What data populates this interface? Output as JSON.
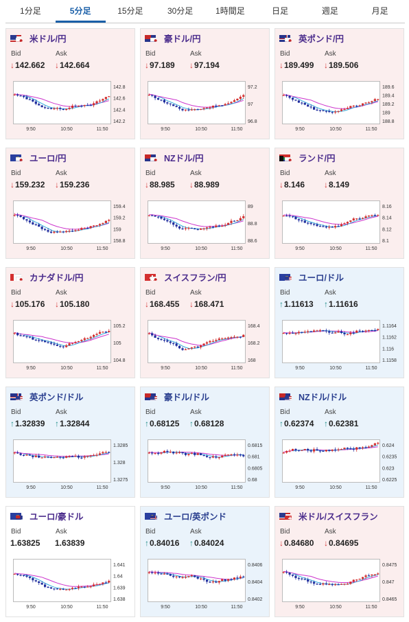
{
  "tabs": [
    {
      "label": "1分足",
      "active": false
    },
    {
      "label": "5分足",
      "active": true
    },
    {
      "label": "15分足",
      "active": false
    },
    {
      "label": "30分足",
      "active": false
    },
    {
      "label": "1時間足",
      "active": false
    },
    {
      "label": "日足",
      "active": false
    },
    {
      "label": "週足",
      "active": false
    },
    {
      "label": "月足",
      "active": false
    }
  ],
  "labels": {
    "bid": "Bid",
    "ask": "Ask"
  },
  "x_ticks": [
    "9:50",
    "10:50",
    "11:50"
  ],
  "colors": {
    "up": "#d32f2f",
    "down": "#1f2d9e",
    "ma_short": "#33aadd",
    "ma_long": "#cc33cc",
    "down_arrow": "#d53737",
    "up_arrow": "#1f8c88"
  },
  "cards": [
    {
      "name": "usd-jpy",
      "title": "米ドル/円",
      "flag": "us-jp",
      "bg": "pink",
      "bid": "142.662",
      "ask": "142.664",
      "trend": "down",
      "y_ticks": [
        "142.8",
        "142.6",
        "142.4",
        "142.2"
      ]
    },
    {
      "name": "aud-jpy",
      "title": "豪ドル/円",
      "flag": "au-jp",
      "bg": "pink",
      "bid": "97.189",
      "ask": "97.194",
      "trend": "down",
      "y_ticks": [
        "97.2",
        "97",
        "96.8"
      ]
    },
    {
      "name": "gbp-jpy",
      "title": "英ポンド/円",
      "flag": "gb-jp",
      "bg": "pink",
      "bid": "189.499",
      "ask": "189.506",
      "trend": "down",
      "y_ticks": [
        "189.6",
        "189.4",
        "189.2",
        "189",
        "188.8"
      ]
    },
    {
      "name": "eur-jpy",
      "title": "ユーロ/円",
      "flag": "eu-jp",
      "bg": "pink",
      "bid": "159.232",
      "ask": "159.236",
      "trend": "down",
      "y_ticks": [
        "159.4",
        "159.2",
        "159",
        "158.8"
      ]
    },
    {
      "name": "nzd-jpy",
      "title": "NZドル/円",
      "flag": "nz-jp",
      "bg": "pink",
      "bid": "88.985",
      "ask": "88.989",
      "trend": "down",
      "y_ticks": [
        "89",
        "88.8",
        "88.6"
      ]
    },
    {
      "name": "zar-jpy",
      "title": "ランド/円",
      "flag": "za-jp",
      "bg": "pink",
      "bid": "8.146",
      "ask": "8.149",
      "trend": "down",
      "y_ticks": [
        "8.16",
        "8.14",
        "8.12",
        "8.1"
      ]
    },
    {
      "name": "cad-jpy",
      "title": "カナダドル/円",
      "flag": "ca-jp",
      "bg": "pink",
      "bid": "105.176",
      "ask": "105.180",
      "trend": "down",
      "y_ticks": [
        "105.2",
        "105",
        "104.8"
      ]
    },
    {
      "name": "chf-jpy",
      "title": "スイスフラン/円",
      "flag": "ch-jp",
      "bg": "pink",
      "bid": "168.455",
      "ask": "168.471",
      "trend": "down",
      "y_ticks": [
        "168.4",
        "168.2",
        "168"
      ]
    },
    {
      "name": "eur-usd",
      "title": "ユーロ/ドル",
      "flag": "eu-us",
      "bg": "blue",
      "bid": "1.11613",
      "ask": "1.11616",
      "trend": "up",
      "y_ticks": [
        "1.1164",
        "1.1162",
        "1.116",
        "1.1158"
      ]
    },
    {
      "name": "gbp-usd",
      "title": "英ポンド/ドル",
      "flag": "gb-us",
      "bg": "blue",
      "bid": "1.32839",
      "ask": "1.32844",
      "trend": "up",
      "y_ticks": [
        "1.3285",
        "1.328",
        "1.3275"
      ]
    },
    {
      "name": "aud-usd",
      "title": "豪ドル/ドル",
      "flag": "au-us",
      "bg": "blue",
      "bid": "0.68125",
      "ask": "0.68128",
      "trend": "up",
      "y_ticks": [
        "0.6815",
        "0.681",
        "0.6805",
        "0.68"
      ]
    },
    {
      "name": "nzd-usd",
      "title": "NZドル/ドル",
      "flag": "nz-us",
      "bg": "blue",
      "bid": "0.62374",
      "ask": "0.62381",
      "trend": "up",
      "y_ticks": [
        "0.624",
        "0.6235",
        "0.623",
        "0.6225"
      ]
    },
    {
      "name": "eur-aud",
      "title": "ユーロ/豪ドル",
      "flag": "eu-au",
      "bg": "white",
      "bid": "1.63825",
      "ask": "1.63839",
      "trend": "none",
      "y_ticks": [
        "1.641",
        "1.64",
        "1.639",
        "1.638"
      ]
    },
    {
      "name": "eur-gbp",
      "title": "ユーロ/英ポンド",
      "flag": "eu-gb",
      "bg": "blue",
      "bid": "0.84016",
      "ask": "0.84024",
      "trend": "up",
      "y_ticks": [
        "0.8406",
        "0.8404",
        "0.8402"
      ]
    },
    {
      "name": "usd-chf",
      "title": "米ドル/スイスフラン",
      "flag": "us-ch",
      "bg": "pink",
      "bid": "0.84680",
      "ask": "0.84695",
      "trend": "down",
      "y_ticks": [
        "0.8475",
        "0.847",
        "0.8465"
      ]
    }
  ]
}
